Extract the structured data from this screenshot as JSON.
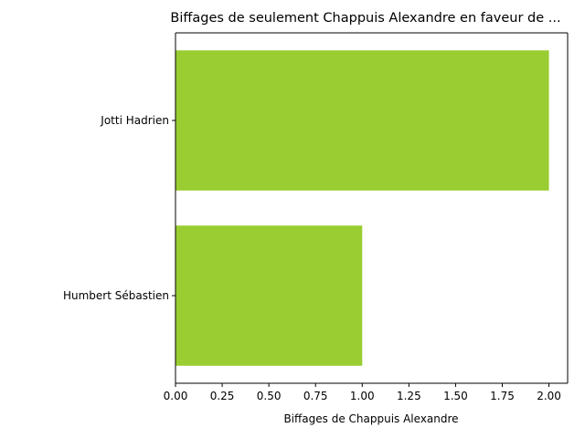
{
  "chart_data": {
    "type": "bar",
    "orientation": "horizontal",
    "title": "Biffages de seulement Chappuis Alexandre en faveur de ...",
    "xlabel": "Biffages de Chappuis Alexandre",
    "ylabel": "",
    "categories": [
      "Jotti Hadrien",
      "Humbert Sébastien"
    ],
    "values": [
      2,
      1
    ],
    "xlim": [
      0,
      2.1
    ],
    "xticks": [
      "0.00",
      "0.25",
      "0.50",
      "0.75",
      "1.00",
      "1.25",
      "1.50",
      "1.75",
      "2.00"
    ],
    "bar_color": "#9acd32",
    "grid": false,
    "legend": "none"
  }
}
